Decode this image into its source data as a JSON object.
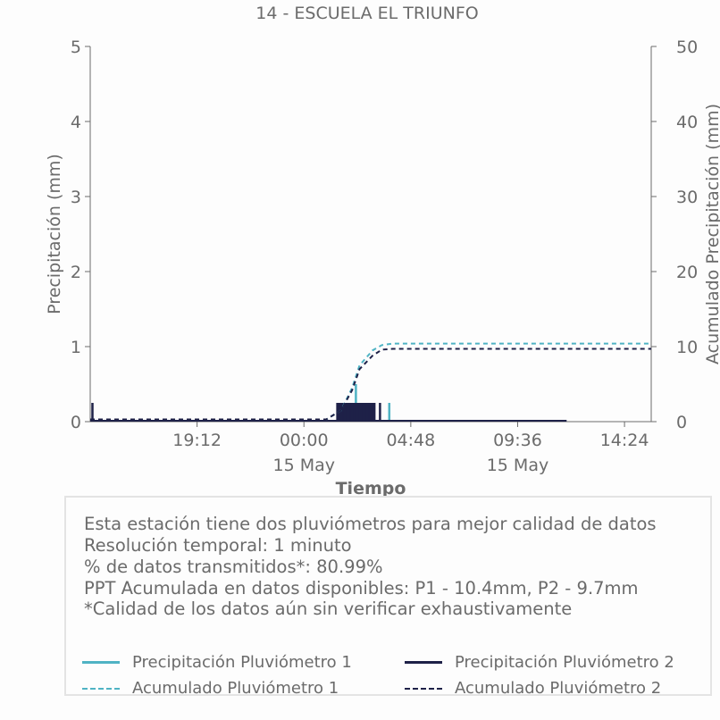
{
  "chart_data": {
    "type": "line",
    "title": "14 - ESCUELA EL TRIUNFO",
    "xlabel": "Tiempo",
    "ylabel": "Precipitación (mm)",
    "ylabel_right": "Acumulado Precipitación (mm)",
    "ylim": [
      0,
      5
    ],
    "ylim_right": [
      0,
      50
    ],
    "yticks": [
      "0",
      "1",
      "2",
      "3",
      "4",
      "5"
    ],
    "yticks_right": [
      "0",
      "10",
      "20",
      "30",
      "40",
      "50"
    ],
    "xlim": [
      "2024-05-14 14:24",
      "2024-05-15 15:36"
    ],
    "xticks": [
      {
        "time": "2024-05-14 19:12",
        "label": "19:12",
        "sublabel": ""
      },
      {
        "time": "2024-05-15 00:00",
        "label": "00:00",
        "sublabel": "15 May"
      },
      {
        "time": "2024-05-15 04:48",
        "label": "04:48",
        "sublabel": ""
      },
      {
        "time": "2024-05-15 09:36",
        "label": "09:36",
        "sublabel": "15 May"
      },
      {
        "time": "2024-05-15 14:24",
        "label": "14:24",
        "sublabel": ""
      }
    ],
    "series": [
      {
        "name": "Precipitación Pluviómetro 1",
        "axis": "left",
        "style": "bars",
        "color": "#4fb3c4",
        "points": [
          [
            "2024-05-15 02:20",
            0.5
          ],
          [
            "2024-05-15 03:05",
            0.25
          ],
          [
            "2024-05-15 03:50",
            0.25
          ]
        ]
      },
      {
        "name": "Precipitación Pluviómetro 2",
        "axis": "left",
        "style": "bars",
        "color": "#1e2148",
        "points": [
          [
            "2024-05-14 14:30",
            0.25
          ],
          [
            "2024-05-15 01:30",
            0.25
          ],
          [
            "2024-05-15 01:40",
            0.25
          ],
          [
            "2024-05-15 01:50",
            0.25
          ],
          [
            "2024-05-15 02:00",
            0.25
          ],
          [
            "2024-05-15 02:10",
            0.25
          ],
          [
            "2024-05-15 02:20",
            0.25
          ],
          [
            "2024-05-15 02:30",
            0.25
          ],
          [
            "2024-05-15 02:40",
            0.25
          ],
          [
            "2024-05-15 02:50",
            0.25
          ],
          [
            "2024-05-15 03:00",
            0.25
          ],
          [
            "2024-05-15 03:10",
            0.25
          ],
          [
            "2024-05-15 03:25",
            0.25
          ]
        ],
        "band": {
          "from": "2024-05-15 01:30",
          "to": "2024-05-15 03:10",
          "value": 0.25
        },
        "baseline": {
          "from": "2024-05-14 14:24",
          "to": "2024-05-15 11:48",
          "value": 0
        }
      },
      {
        "name": "Acumulado Pluviómetro 1",
        "axis": "right",
        "style": "dashed",
        "color": "#4fb3c4",
        "points": [
          [
            "2024-05-14 14:24",
            0.3
          ],
          [
            "2024-05-15 01:00",
            0.3
          ],
          [
            "2024-05-15 01:40",
            1.5
          ],
          [
            "2024-05-15 02:10",
            4.5
          ],
          [
            "2024-05-15 02:30",
            7.5
          ],
          [
            "2024-05-15 03:05",
            9.5
          ],
          [
            "2024-05-15 03:30",
            10.2
          ],
          [
            "2024-05-15 04:00",
            10.4
          ],
          [
            "2024-05-15 15:36",
            10.4
          ]
        ]
      },
      {
        "name": "Acumulado Pluviómetro 2",
        "axis": "right",
        "style": "dashed",
        "color": "#1e2148",
        "points": [
          [
            "2024-05-14 14:24",
            0.3
          ],
          [
            "2024-05-15 01:00",
            0.3
          ],
          [
            "2024-05-15 01:40",
            1.5
          ],
          [
            "2024-05-15 02:10",
            4.2
          ],
          [
            "2024-05-15 02:30",
            7.0
          ],
          [
            "2024-05-15 03:05",
            8.8
          ],
          [
            "2024-05-15 03:30",
            9.6
          ],
          [
            "2024-05-15 04:00",
            9.7
          ],
          [
            "2024-05-15 15:36",
            9.7
          ]
        ]
      }
    ],
    "info_lines": [
      "Esta estación tiene dos pluviómetros para mejor calidad de datos",
      "Resolución temporal: 1 minuto",
      "% de datos transmitidos*: 80.99%",
      "PPT Acumulada en datos disponibles: P1 - 10.4mm, P2 - 9.7mm",
      "*Calidad de los datos aún sin verificar exhaustivamente"
    ],
    "legend": [
      {
        "label": "Precipitación Pluviómetro 1",
        "color": "#4fb3c4",
        "style": "solid"
      },
      {
        "label": "Precipitación Pluviómetro 2",
        "color": "#1e2148",
        "style": "solid"
      },
      {
        "label": "Acumulado Pluviómetro 1",
        "color": "#4fb3c4",
        "style": "dashed"
      },
      {
        "label": "Acumulado Pluviómetro 2",
        "color": "#1e2148",
        "style": "dashed"
      }
    ],
    "grid": false,
    "legend_placement": "bottom"
  }
}
